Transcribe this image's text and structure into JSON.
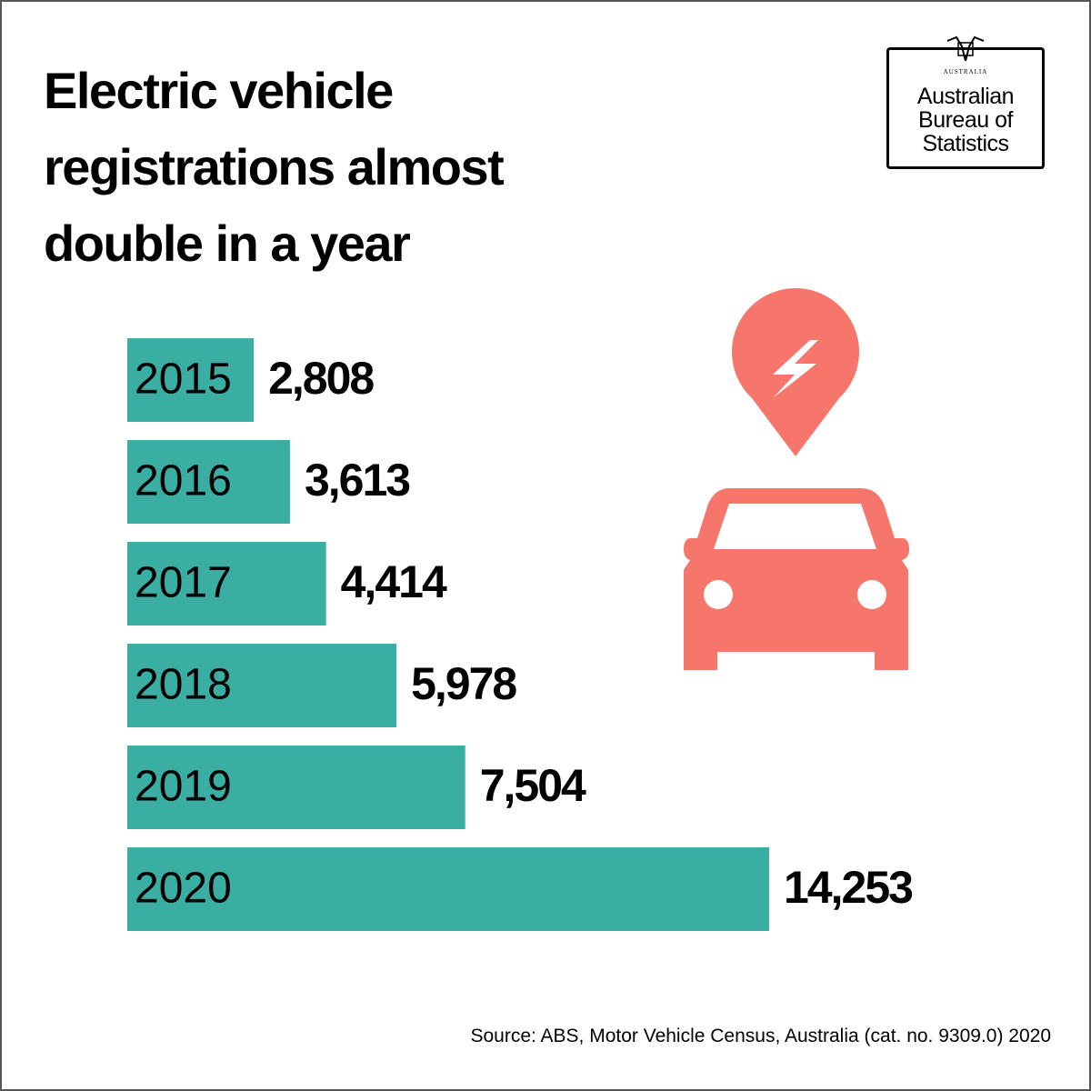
{
  "logo": {
    "crest_text": "AUSTRALIA",
    "name_lines": [
      "Australian",
      "Bureau of",
      "Statistics"
    ]
  },
  "chart_data": {
    "type": "bar",
    "orientation": "horizontal",
    "title": "Electric vehicle registrations almost double in a year",
    "categories": [
      "2015",
      "2016",
      "2017",
      "2018",
      "2019",
      "2020"
    ],
    "values": [
      2808,
      3613,
      4414,
      5978,
      7504,
      14253
    ],
    "value_labels": [
      "2,808",
      "3,613",
      "4,414",
      "5,978",
      "7,504",
      "14,253"
    ],
    "color": "#3aaea3",
    "source": "Source: ABS, Motor Vehicle Census, Australia (cat. no. 9309.0) 2020"
  }
}
